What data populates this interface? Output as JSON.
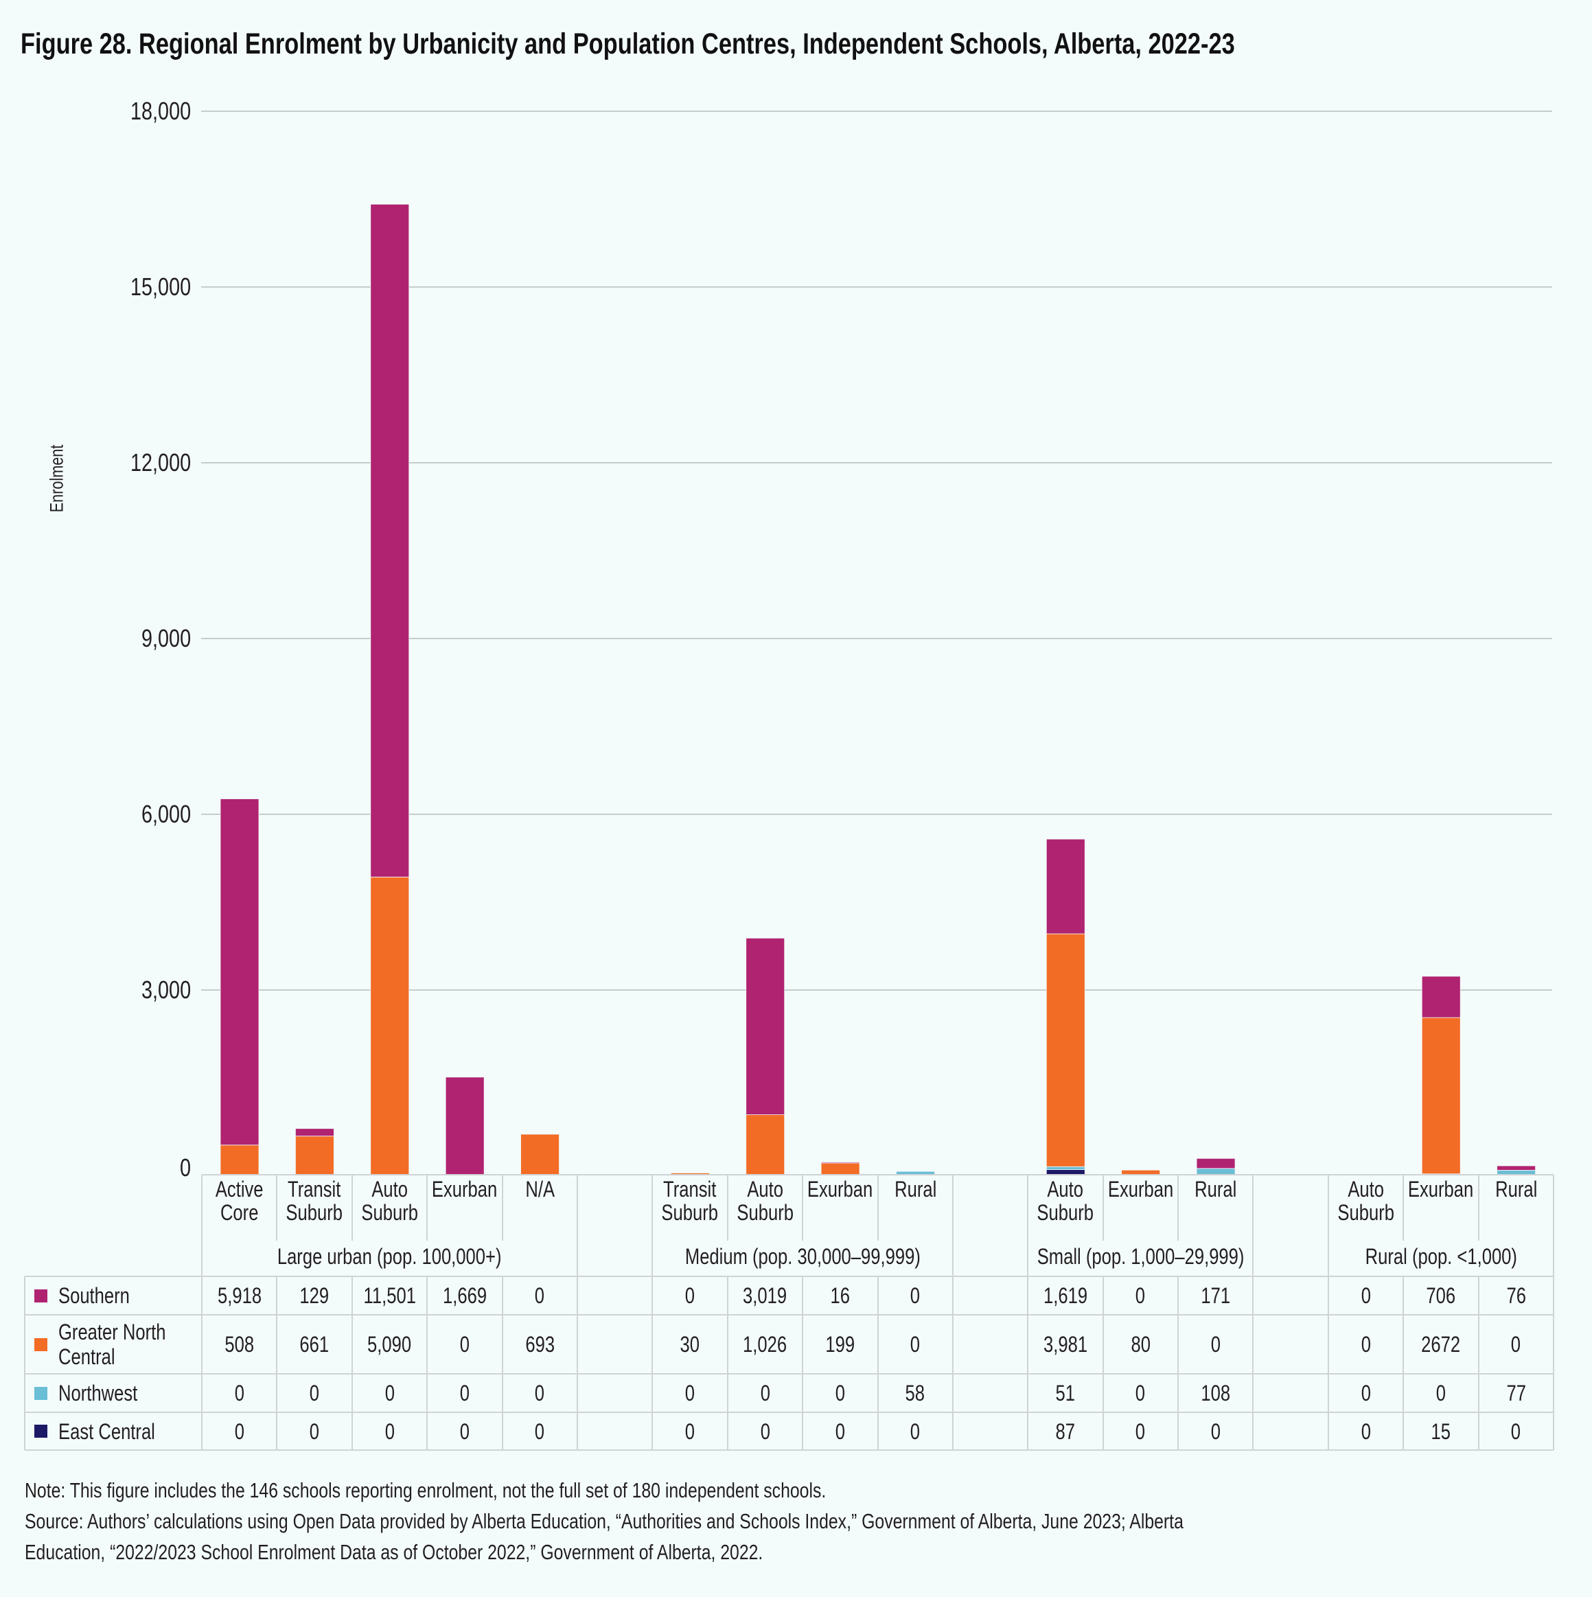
{
  "title": "Figure 28. Regional Enrolment by Urbanicity and Population Centres, Independent Schools, Alberta, 2022-23",
  "chart_data": {
    "type": "bar",
    "stacked": true,
    "title": "Figure 28. Regional Enrolment by Urbanicity and Population Centres, Independent Schools, Alberta, 2022-23",
    "xlabel": "",
    "ylabel": "Enrolment",
    "ylim": [
      0,
      18000
    ],
    "yticks": [
      0,
      3000,
      6000,
      9000,
      12000,
      15000,
      18000
    ],
    "ytick_labels": [
      "0",
      "3,000",
      "6,000",
      "9,000",
      "12,000",
      "15,000",
      "18,000"
    ],
    "grid": true,
    "legend_placement": "bottom-left (data table)",
    "groups": [
      {
        "label": "Large urban (pop. 100,000+)",
        "categories": [
          "Active Core",
          "Transit Suburb",
          "Auto Suburb",
          "Exurban",
          "N/A"
        ]
      },
      {
        "label": "Medium (pop. 30,000–99,999)",
        "categories": [
          "Transit Suburb",
          "Auto Suburb",
          "Exurban",
          "Rural"
        ]
      },
      {
        "label": "Small (pop. 1,000–29,999)",
        "categories": [
          "Auto Suburb",
          "Exurban",
          "Rural"
        ]
      },
      {
        "label": "Rural (pop. <1,000)",
        "categories": [
          "Auto Suburb",
          "Exurban",
          "Rural"
        ]
      }
    ],
    "categories": [
      "Active Core",
      "Transit Suburb",
      "Auto Suburb",
      "Exurban",
      "N/A",
      "Transit Suburb",
      "Auto Suburb",
      "Exurban",
      "Rural",
      "Auto Suburb",
      "Exurban",
      "Rural",
      "Auto Suburb",
      "Exurban",
      "Rural"
    ],
    "series": [
      {
        "name": "Southern",
        "color": "#B02370",
        "values": [
          5918,
          129,
          11501,
          1669,
          0,
          0,
          3019,
          16,
          0,
          1619,
          0,
          171,
          0,
          706,
          76
        ],
        "labels": [
          "5,918",
          "129",
          "11,501",
          "1,669",
          "0",
          "0",
          "3,019",
          "16",
          "0",
          "1,619",
          "0",
          "171",
          "0",
          "706",
          "76"
        ]
      },
      {
        "name": "Greater North Central",
        "color": "#F26C26",
        "values": [
          508,
          661,
          5090,
          0,
          693,
          30,
          1026,
          199,
          0,
          3981,
          80,
          0,
          0,
          2672,
          0
        ],
        "labels": [
          "508",
          "661",
          "5,090",
          "0",
          "693",
          "30",
          "1,026",
          "199",
          "0",
          "3,981",
          "80",
          "0",
          "0",
          "2672",
          "0"
        ]
      },
      {
        "name": "Northwest",
        "color": "#6ABED6",
        "values": [
          0,
          0,
          0,
          0,
          0,
          0,
          0,
          0,
          58,
          51,
          0,
          108,
          0,
          0,
          77
        ],
        "labels": [
          "0",
          "0",
          "0",
          "0",
          "0",
          "0",
          "0",
          "0",
          "58",
          "51",
          "0",
          "108",
          "0",
          "0",
          "77"
        ]
      },
      {
        "name": "East Central",
        "color": "#1C1A66",
        "values": [
          0,
          0,
          0,
          0,
          0,
          0,
          0,
          0,
          0,
          87,
          0,
          0,
          0,
          15,
          0
        ],
        "labels": [
          "0",
          "0",
          "0",
          "0",
          "0",
          "0",
          "0",
          "0",
          "0",
          "87",
          "0",
          "0",
          "0",
          "15",
          "0"
        ]
      }
    ],
    "stack_order_bottom_to_top": [
      "East Central",
      "Northwest",
      "Greater North Central",
      "Southern"
    ]
  },
  "notes": {
    "note": "Note: This figure includes the 146 schools reporting enrolment, not the full set of 180 independent schools.",
    "source_line1": "Source: Authors’ calculations using Open Data provided by Alberta Education, “Authorities and Schools Index,” Government of Alberta, June 2023; Alberta",
    "source_line2": "Education, “2022/2023 School Enrolment Data as of October 2022,” Government of Alberta, 2022."
  }
}
